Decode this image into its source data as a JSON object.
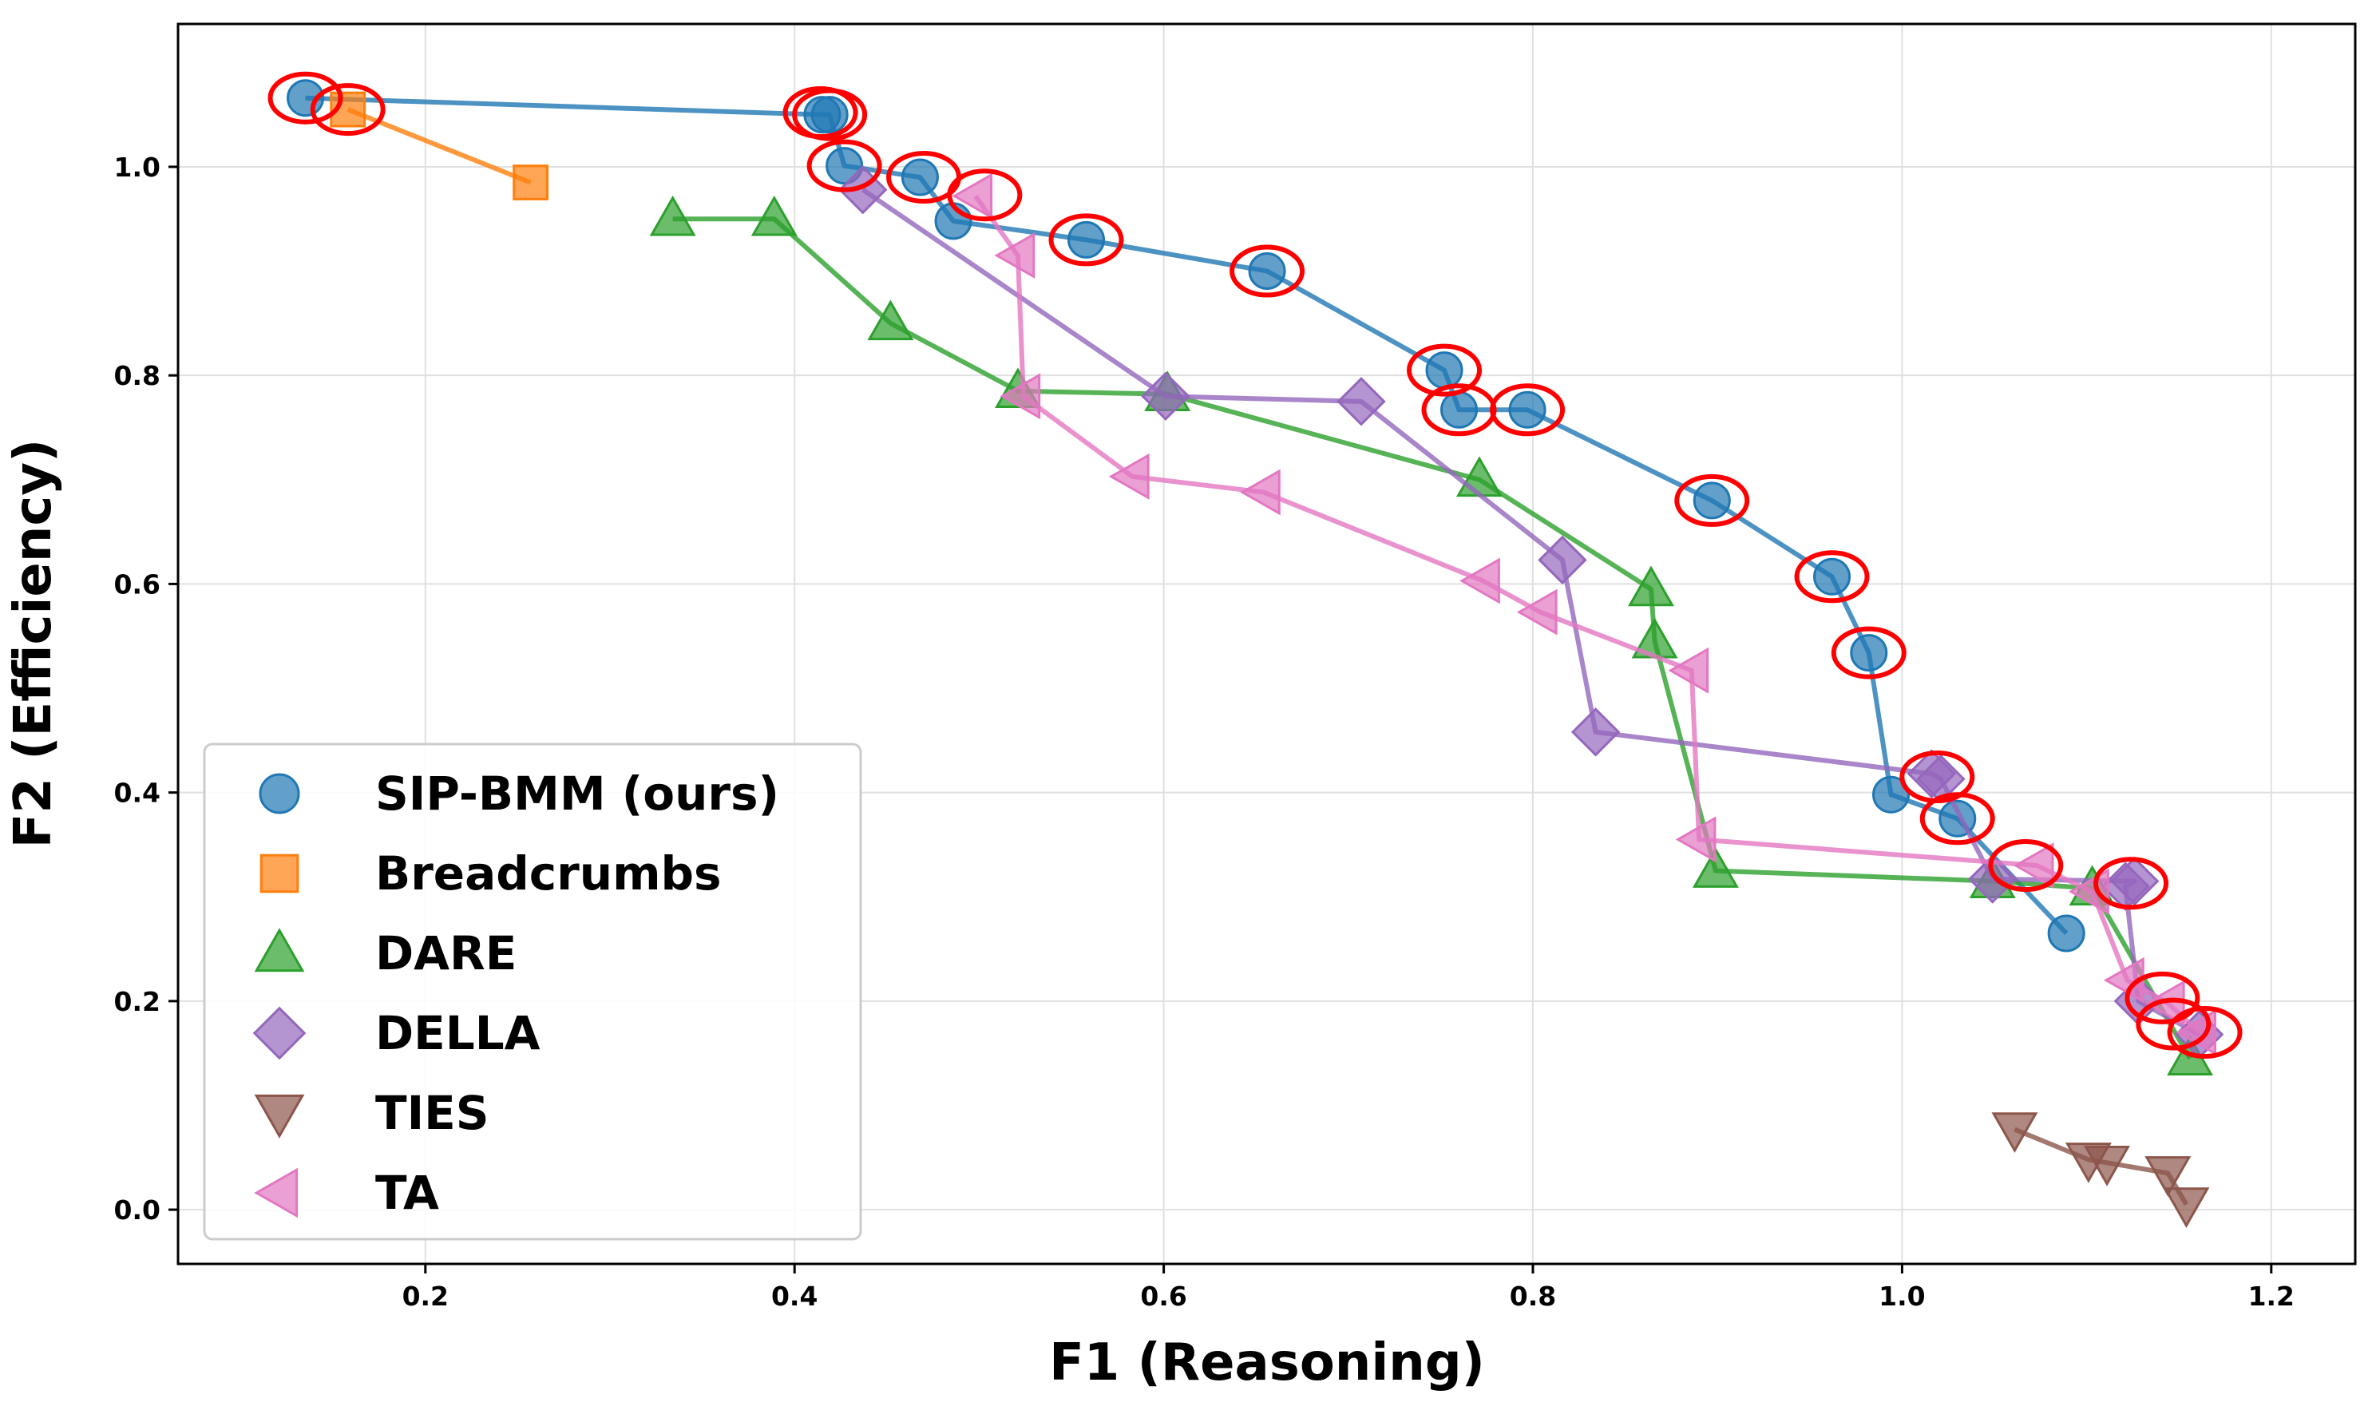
{
  "chart_data": {
    "type": "scatter",
    "title": "",
    "xlabel": "F1 (Reasoning)",
    "ylabel": "F2 (Efficiency)",
    "xlim": [
      0.066,
      1.2455
    ],
    "ylim": [
      -0.052,
      1.137
    ],
    "xticks": [
      "0.2",
      "0.4",
      "0.6",
      "0.8",
      "1.0",
      "1.2"
    ],
    "yticks": [
      "0.0",
      "0.2",
      "0.4",
      "0.6",
      "0.8",
      "1.0"
    ],
    "grid": true,
    "legend_position": "lower-left",
    "series": [
      {
        "name": "SIP-BMM (ours)",
        "marker": "circle",
        "color": "#1f77b4",
        "x": [
          0.135,
          0.415,
          0.419,
          0.427,
          0.468,
          0.486,
          0.558,
          0.656,
          0.752,
          0.76,
          0.797,
          0.897,
          0.962,
          0.982,
          0.994,
          1.03,
          1.089
        ],
        "y": [
          1.066,
          1.05,
          1.05,
          1.001,
          0.99,
          0.948,
          0.93,
          0.9,
          0.805,
          0.767,
          0.767,
          0.68,
          0.607,
          0.534,
          0.398,
          0.375,
          0.265
        ]
      },
      {
        "name": "Breadcrumbs",
        "marker": "square",
        "color": "#ff7f0e",
        "x": [
          0.158,
          0.257
        ],
        "y": [
          1.055,
          0.985
        ]
      },
      {
        "name": "DARE",
        "marker": "triangle-up",
        "color": "#2ca02c",
        "x": [
          0.334,
          0.389,
          0.452,
          0.521,
          0.602,
          0.771,
          0.864,
          0.866,
          0.899,
          1.049,
          1.103,
          1.156
        ],
        "y": [
          0.95,
          0.95,
          0.85,
          0.785,
          0.782,
          0.7,
          0.595,
          0.545,
          0.325,
          0.315,
          0.308,
          0.145
        ]
      },
      {
        "name": "DELLA",
        "marker": "diamond",
        "color": "#9467bd",
        "x": [
          0.437,
          0.601,
          0.707,
          0.816,
          0.834,
          1.016,
          1.021,
          1.049,
          1.126,
          1.121,
          1.128,
          1.161
        ],
        "y": [
          0.978,
          0.78,
          0.775,
          0.623,
          0.458,
          0.418,
          0.413,
          0.317,
          0.315,
          0.31,
          0.2,
          0.168
        ]
      },
      {
        "name": "TIES",
        "marker": "triangle-down",
        "color": "#8c564b",
        "x": [
          1.061,
          1.101,
          1.111,
          1.144,
          1.154
        ],
        "y": [
          0.077,
          0.048,
          0.045,
          0.035,
          0.005
        ]
      },
      {
        "name": "TA",
        "marker": "triangle-left",
        "color": "#e377c2",
        "x": [
          0.498,
          0.521,
          0.524,
          0.583,
          0.654,
          0.773,
          0.804,
          0.886,
          0.89,
          1.073,
          1.103,
          1.122,
          1.144,
          1.161
        ],
        "y": [
          0.972,
          0.915,
          0.78,
          0.703,
          0.688,
          0.603,
          0.573,
          0.517,
          0.355,
          0.33,
          0.305,
          0.22,
          0.198,
          0.17
        ]
      }
    ],
    "highlighted": {
      "description": "red ellipses",
      "x": [
        0.135,
        0.158,
        0.414,
        0.419,
        0.427,
        0.47,
        0.503,
        0.558,
        0.656,
        0.752,
        0.76,
        0.797,
        0.897,
        0.962,
        0.982,
        1.019,
        1.03,
        1.067,
        1.124,
        1.141,
        1.147,
        1.164
      ],
      "y": [
        1.066,
        1.055,
        1.052,
        1.05,
        1.001,
        0.99,
        0.973,
        0.93,
        0.9,
        0.805,
        0.767,
        0.767,
        0.68,
        0.607,
        0.534,
        0.415,
        0.375,
        0.33,
        0.313,
        0.203,
        0.178,
        0.17
      ]
    }
  }
}
